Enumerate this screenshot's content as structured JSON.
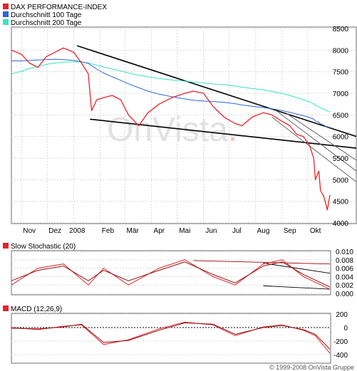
{
  "main_chart": {
    "watermark": "OnVista",
    "watermark_dot": ".",
    "legend": [
      {
        "label": "DAX PERFORMANCE-INDEX",
        "color": "#e8232a"
      },
      {
        "label": "Durchschnitt 100 Tage",
        "color": "#2e67d6"
      },
      {
        "label": "Durchschnitt 200 Tage",
        "color": "#37e3c2"
      }
    ],
    "x_tick_labels": [
      "Nov",
      "Dez",
      "2008",
      "Feb",
      "Mär",
      "Apr",
      "Mai",
      "Jun",
      "Jul",
      "Aug",
      "Sep",
      "Okt"
    ],
    "y_tick_labels": [
      "8500",
      "8000",
      "7500",
      "7000",
      "6500",
      "6000",
      "5500",
      "5000",
      "4500",
      "4000"
    ]
  },
  "stochastic_panel": {
    "title": "Slow Stochastic (20)",
    "y_tick_labels": [
      "0.010",
      "0.008",
      "0.006",
      "0.004",
      "0.002",
      "0.000"
    ]
  },
  "macd_panel": {
    "title": "MACD (12,26,9)",
    "y_tick_labels": [
      "200",
      "0",
      "-200",
      "-400"
    ]
  },
  "footer": {
    "copyright": "© 1999-2008 OnVista Gruppe"
  },
  "chart_data": [
    {
      "type": "line",
      "title": "DAX PERFORMANCE-INDEX",
      "x": [
        "2007-10-20",
        "2007-11-01",
        "2007-11-10",
        "2007-11-20",
        "2007-11-30",
        "2007-12-10",
        "2007-12-20",
        "2008-01-01",
        "2008-01-10",
        "2008-01-18",
        "2008-01-22",
        "2008-01-28",
        "2008-02-05",
        "2008-02-15",
        "2008-02-25",
        "2008-03-05",
        "2008-03-17",
        "2008-03-28",
        "2008-04-10",
        "2008-04-25",
        "2008-05-10",
        "2008-05-20",
        "2008-06-01",
        "2008-06-12",
        "2008-06-25",
        "2008-07-08",
        "2008-07-16",
        "2008-07-28",
        "2008-08-10",
        "2008-08-20",
        "2008-09-01",
        "2008-09-10",
        "2008-09-18",
        "2008-09-26",
        "2008-10-03",
        "2008-10-08",
        "2008-10-10",
        "2008-10-14",
        "2008-10-16",
        "2008-10-20",
        "2008-10-22",
        "2008-10-24",
        "2008-10-27"
      ],
      "x_tick_labels": [
        "Nov",
        "Dez",
        "2008",
        "Feb",
        "Mär",
        "Apr",
        "Mai",
        "Jun",
        "Jul",
        "Aug",
        "Sep",
        "Okt"
      ],
      "ylim": [
        4000,
        8500
      ],
      "y_ticks": [
        4000,
        4500,
        5000,
        5500,
        6000,
        6500,
        7000,
        7500,
        8000,
        8500
      ],
      "grid": true,
      "legend_position": "top-left",
      "series": [
        {
          "name": "DAX PERFORMANCE-INDEX",
          "color": "#e8232a",
          "values": [
            8000,
            7900,
            7700,
            7600,
            7850,
            7950,
            8050,
            7950,
            7700,
            7450,
            6600,
            6850,
            6900,
            6950,
            6850,
            6500,
            6250,
            6550,
            6750,
            6900,
            7000,
            7050,
            7000,
            6700,
            6450,
            6300,
            6250,
            6450,
            6550,
            6500,
            6350,
            6250,
            6050,
            6000,
            5800,
            5500,
            5000,
            5200,
            4750,
            4600,
            4450,
            4300,
            4650
          ]
        },
        {
          "name": "Durchschnitt 100 Tage",
          "color": "#2e67d6",
          "values": [
            7750,
            7750,
            7760,
            7770,
            7780,
            7790,
            7780,
            7760,
            7730,
            7690,
            7640,
            7560,
            7470,
            7380,
            7300,
            7220,
            7130,
            7050,
            6980,
            6920,
            6870,
            6840,
            6820,
            6810,
            6790,
            6760,
            6730,
            6700,
            6670,
            6640,
            6600,
            6560,
            6520,
            6480,
            6440,
            6400,
            6360,
            6330,
            6290,
            6260,
            6230,
            6210,
            6190
          ]
        },
        {
          "name": "Durchschnitt 200 Tage",
          "color": "#37e3c2",
          "values": [
            7450,
            7510,
            7570,
            7620,
            7670,
            7700,
            7720,
            7730,
            7720,
            7700,
            7680,
            7650,
            7610,
            7560,
            7520,
            7470,
            7420,
            7380,
            7340,
            7310,
            7280,
            7260,
            7240,
            7220,
            7200,
            7170,
            7140,
            7110,
            7080,
            7040,
            7000,
            6950,
            6900,
            6850,
            6800,
            6760,
            6720,
            6690,
            6660,
            6630,
            6610,
            6590,
            6570
          ]
        }
      ]
    },
    {
      "type": "line",
      "title": "Slow Stochastic (20)",
      "x": [
        "2007-10-20",
        "2007-11-20",
        "2007-12-20",
        "2008-01-18",
        "2008-02-05",
        "2008-03-05",
        "2008-04-10",
        "2008-05-10",
        "2008-06-12",
        "2008-07-08",
        "2008-08-10",
        "2008-09-01",
        "2008-09-26",
        "2008-10-27"
      ],
      "ylim": [
        0.0,
        0.01
      ],
      "y_ticks": [
        0.0,
        0.002,
        0.004,
        0.006,
        0.008,
        0.01
      ],
      "y_tick_labels": [
        "0.010",
        "0.008",
        "0.006",
        "0.004",
        "0.002",
        "0.000"
      ],
      "series": [
        {
          "color": "#e8232a",
          "values": [
            0.002,
            0.006,
            0.007,
            0.002,
            0.006,
            0.002,
            0.006,
            0.008,
            0.004,
            0.002,
            0.007,
            0.008,
            0.004,
            0.001
          ]
        },
        {
          "color": "#8a1414",
          "values": [
            0.003,
            0.0055,
            0.0065,
            0.003,
            0.0055,
            0.003,
            0.0055,
            0.0075,
            0.0045,
            0.0025,
            0.0065,
            0.0075,
            0.0045,
            0.0015
          ]
        }
      ]
    },
    {
      "type": "line",
      "title": "MACD (12,26,9)",
      "x": [
        "2007-10-20",
        "2007-11-20",
        "2007-12-20",
        "2008-01-10",
        "2008-02-05",
        "2008-03-05",
        "2008-04-10",
        "2008-05-10",
        "2008-06-12",
        "2008-07-08",
        "2008-08-10",
        "2008-09-01",
        "2008-09-26",
        "2008-10-10",
        "2008-10-27"
      ],
      "ylim": [
        -400,
        200
      ],
      "y_ticks": [
        -400,
        -200,
        0,
        200
      ],
      "y_tick_labels": [
        "200",
        "0",
        "-200",
        "-400"
      ],
      "series": [
        {
          "color": "#e8232a",
          "values": [
            0,
            -30,
            20,
            40,
            -250,
            -180,
            -20,
            80,
            40,
            -120,
            10,
            40,
            -40,
            -120,
            -380
          ]
        },
        {
          "color": "#8a1414",
          "values": [
            -10,
            -20,
            10,
            50,
            -220,
            -190,
            -40,
            70,
            50,
            -100,
            0,
            30,
            -30,
            -100,
            -320
          ]
        }
      ]
    }
  ]
}
